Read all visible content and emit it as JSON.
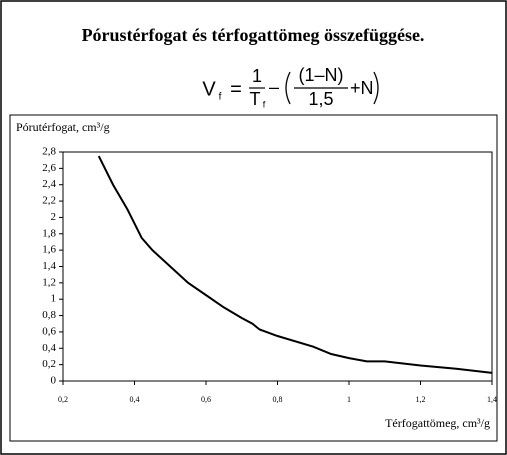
{
  "title": "Pórustérfogat és térfogattömeg összefüggése.",
  "formula": {
    "lhs": "V",
    "lhs_sub": "f",
    "eq": "=",
    "frac1_num": "1",
    "frac1_den": "T",
    "frac1_den_sub": "f",
    "op": "–",
    "frac2_num": "(1–N)",
    "frac2_den": "1,5",
    "tail": "+N"
  },
  "chart_data": {
    "type": "line",
    "ylabel": "Pórutérfogat, cm³/g",
    "xlabel": "Térfogattömeg, cm³/g",
    "x": [
      0.3,
      0.34,
      0.38,
      0.42,
      0.45,
      0.5,
      0.55,
      0.6,
      0.65,
      0.7,
      0.73,
      0.75,
      0.8,
      0.9,
      0.95,
      1.0,
      1.05,
      1.1,
      1.2,
      1.3,
      1.4
    ],
    "values": [
      2.75,
      2.4,
      2.1,
      1.75,
      1.6,
      1.4,
      1.2,
      1.05,
      0.9,
      0.77,
      0.7,
      0.63,
      0.55,
      0.42,
      0.33,
      0.28,
      0.24,
      0.24,
      0.19,
      0.15,
      0.1
    ],
    "color": "#000000",
    "xlim": [
      0.2,
      1.4
    ],
    "xticks": [
      {
        "value": 0.2,
        "label": "0,2"
      },
      {
        "value": 0.4,
        "label": "0,4"
      },
      {
        "value": 0.6,
        "label": "0,6"
      },
      {
        "value": 0.8,
        "label": "0,8"
      },
      1,
      {
        "value": 1.2,
        "label": "1,2"
      },
      {
        "value": 1.4,
        "label": "1,4"
      }
    ],
    "ylim": [
      0,
      2.8
    ],
    "yticks": [
      0,
      {
        "value": 0.2,
        "label": "0,2"
      },
      {
        "value": 0.4,
        "label": "0,4"
      },
      {
        "value": 0.6,
        "label": "0,6"
      },
      {
        "value": 0.8,
        "label": "0,8"
      },
      1,
      {
        "value": 1.2,
        "label": "1,2"
      },
      {
        "value": 1.4,
        "label": "1,4"
      },
      {
        "value": 1.6,
        "label": "1,6"
      },
      {
        "value": 1.8,
        "label": "1,8"
      },
      2,
      {
        "value": 2.2,
        "label": "2,2"
      },
      {
        "value": 2.4,
        "label": "2,4"
      },
      {
        "value": 2.6,
        "label": "2,6"
      },
      {
        "value": 2.8,
        "label": "2,8"
      }
    ],
    "grid": false
  }
}
